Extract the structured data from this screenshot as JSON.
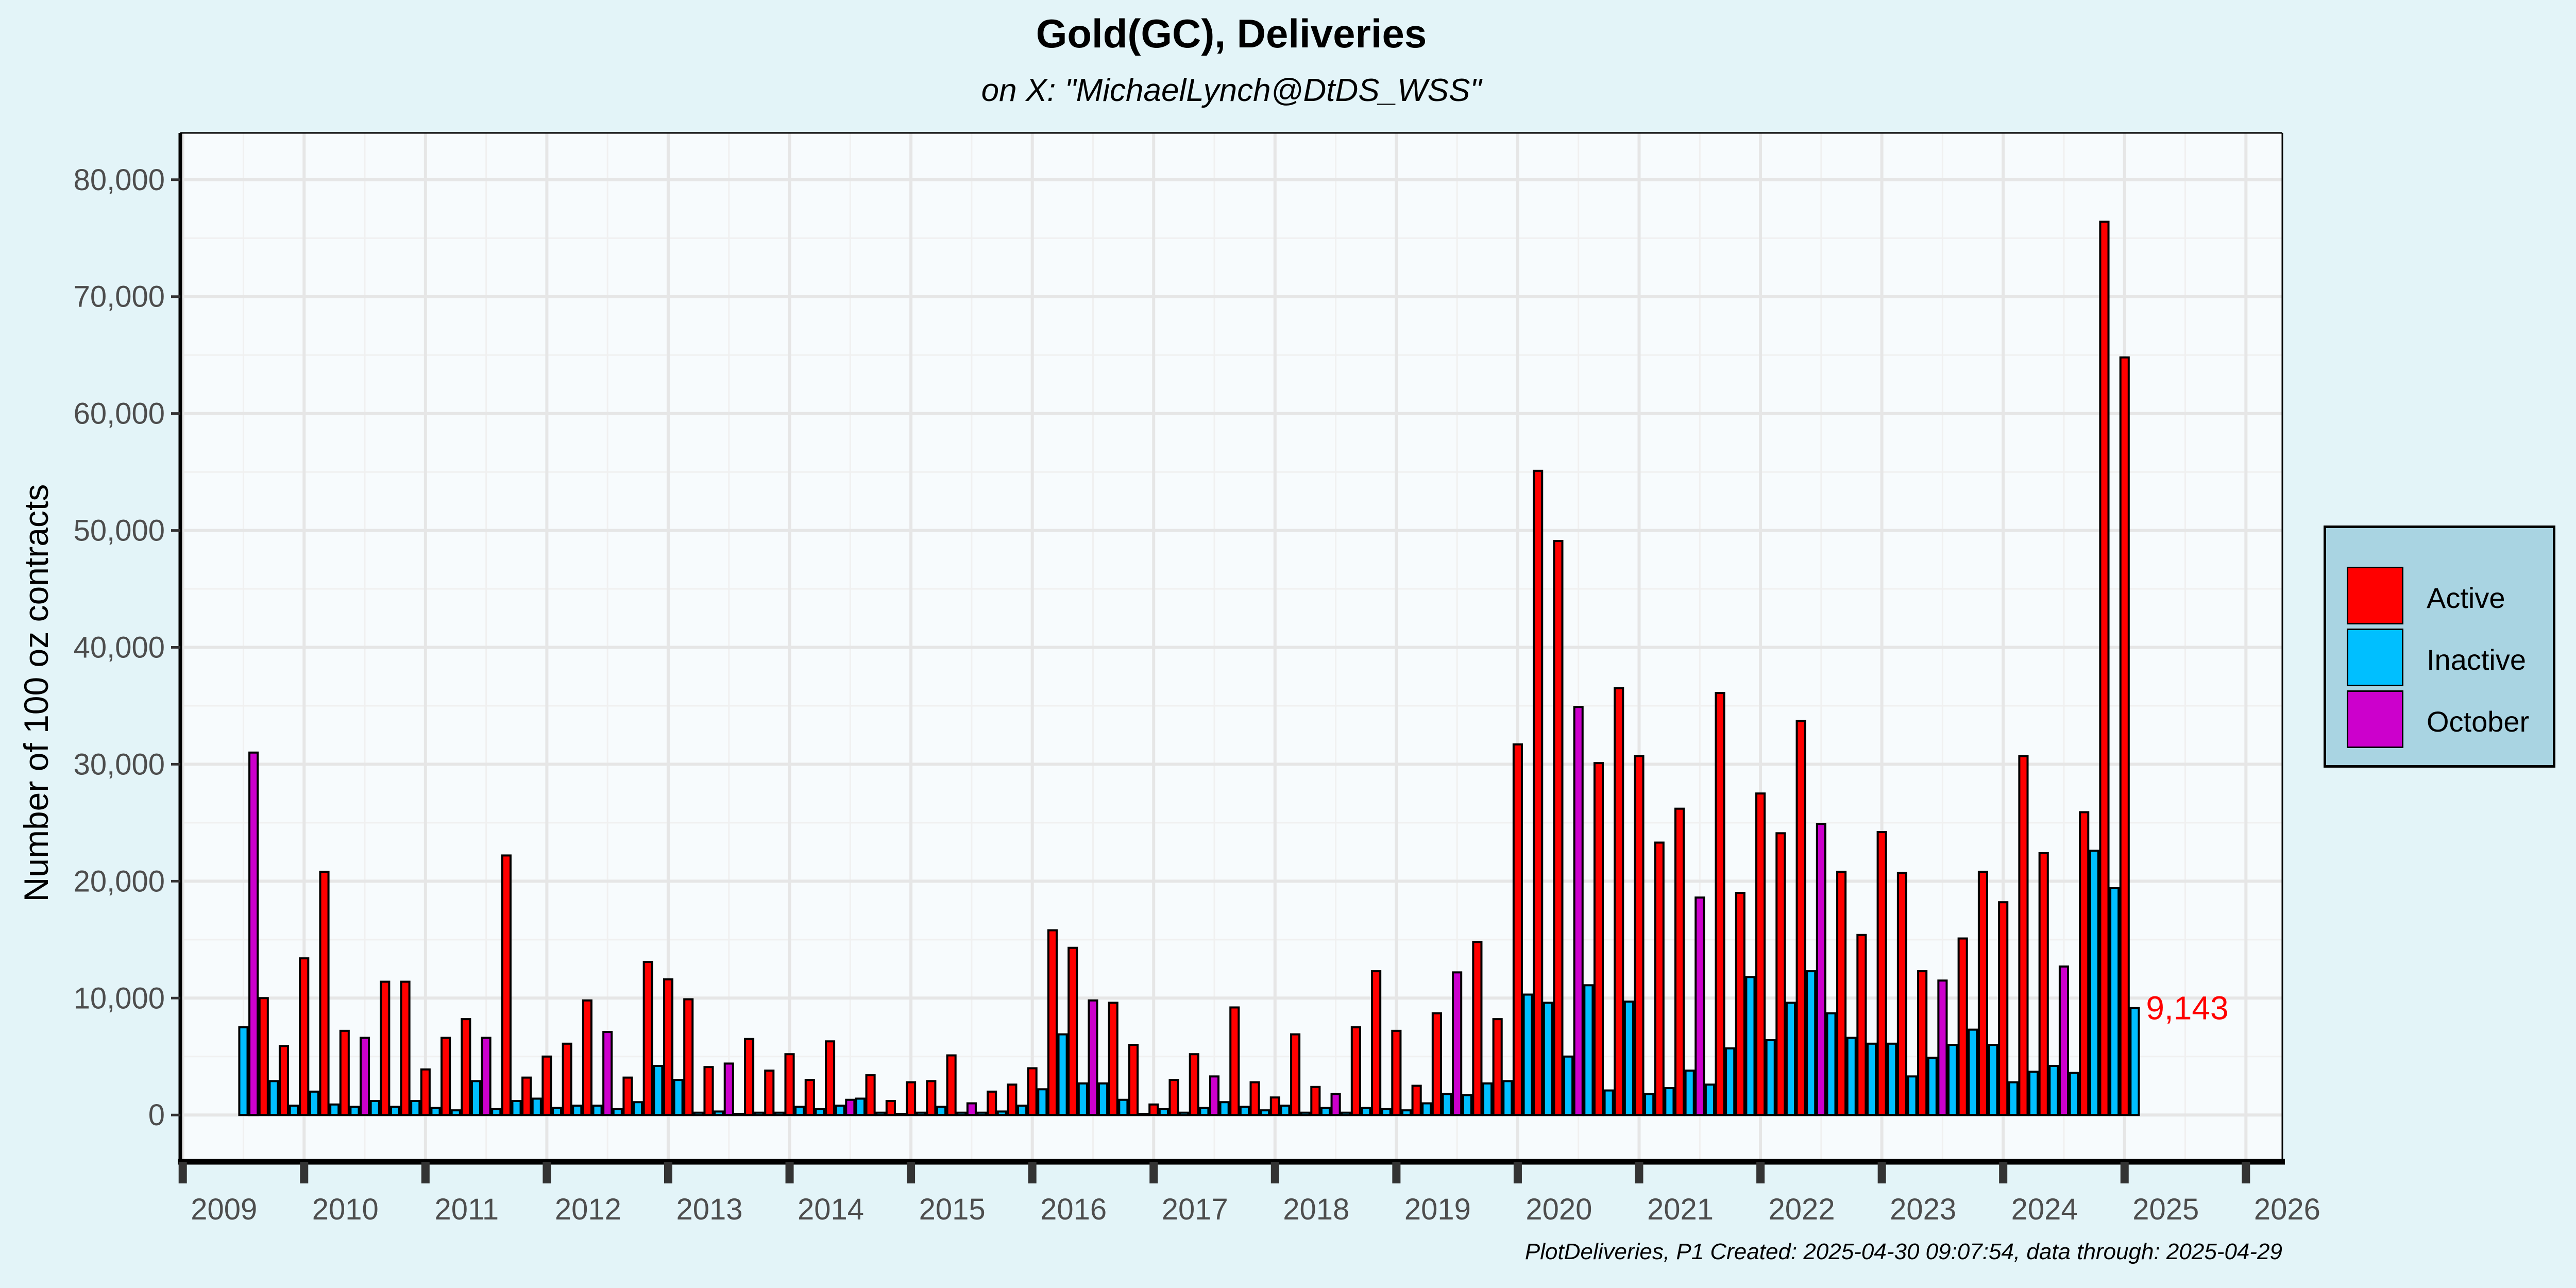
{
  "title": "Gold(GC), Deliveries",
  "subtitle": "on X:   \"MichaelLynch@DtDS_WSS\"",
  "caption": "PlotDeliveries, P1 Created: 2025-04-30 09:07:54, data through: 2025-04-29",
  "colors": {
    "background": "#e3f4f8",
    "panel": "#f7fbfd",
    "grid": "#e6e6e6",
    "Active": "#ff0000",
    "Inactive": "#00bfff",
    "October": "#cc00cc",
    "annotation": "#ff0000"
  },
  "chart_data": {
    "type": "bar",
    "title": "Gold(GC), Deliveries",
    "subtitle": "on X:   \"MichaelLynch@DtDS_WSS\"",
    "xlabel": "",
    "ylabel": "Number of 100 oz contracts",
    "xlim": [
      2008.98,
      2026.3
    ],
    "ylim": [
      -4000,
      84000
    ],
    "x_ticks": [
      "2009",
      "2010",
      "2011",
      "2012",
      "2013",
      "2014",
      "2015",
      "2016",
      "2017",
      "2018",
      "2019",
      "2020",
      "2021",
      "2022",
      "2023",
      "2024",
      "2025",
      "2026"
    ],
    "y_ticks": [
      "0",
      "10,000",
      "20,000",
      "30,000",
      "40,000",
      "50,000",
      "60,000",
      "70,000",
      "80,000"
    ],
    "grid": true,
    "legend_position": "right",
    "series": [
      {
        "name": "Active",
        "color": "#ff0000"
      },
      {
        "name": "Inactive",
        "color": "#00bfff"
      },
      {
        "name": "October",
        "color": "#cc00cc"
      }
    ],
    "bars": [
      {
        "x": "2009-07",
        "series": "Inactive",
        "value": 7500
      },
      {
        "x": "2009-08",
        "series": "Inactive",
        "value": 1000
      },
      {
        "x": "2009-08",
        "series": "October",
        "value": 31000
      },
      {
        "x": "2009-09",
        "series": "Active",
        "value": 10000
      },
      {
        "x": "2009-10",
        "series": "Inactive",
        "value": 2900
      },
      {
        "x": "2009-11",
        "series": "Active",
        "value": 5900
      },
      {
        "x": "2009-12",
        "series": "Inactive",
        "value": 800
      },
      {
        "x": "2010-01",
        "series": "Active",
        "value": 13400
      },
      {
        "x": "2010-02",
        "series": "Inactive",
        "value": 2000
      },
      {
        "x": "2010-03",
        "series": "Active",
        "value": 20800
      },
      {
        "x": "2010-04",
        "series": "Inactive",
        "value": 900
      },
      {
        "x": "2010-05",
        "series": "Active",
        "value": 7200
      },
      {
        "x": "2010-06",
        "series": "Inactive",
        "value": 700
      },
      {
        "x": "2010-07",
        "series": "October",
        "value": 6600
      },
      {
        "x": "2010-08",
        "series": "Inactive",
        "value": 1200
      },
      {
        "x": "2010-09",
        "series": "Active",
        "value": 11400
      },
      {
        "x": "2010-10",
        "series": "Inactive",
        "value": 700
      },
      {
        "x": "2010-11",
        "series": "Active",
        "value": 11400
      },
      {
        "x": "2010-12",
        "series": "Inactive",
        "value": 1200
      },
      {
        "x": "2011-01",
        "series": "Active",
        "value": 3900
      },
      {
        "x": "2011-02",
        "series": "Inactive",
        "value": 600
      },
      {
        "x": "2011-03",
        "series": "Active",
        "value": 6600
      },
      {
        "x": "2011-04",
        "series": "Inactive",
        "value": 400
      },
      {
        "x": "2011-05",
        "series": "Active",
        "value": 8200
      },
      {
        "x": "2011-06",
        "series": "Inactive",
        "value": 2900
      },
      {
        "x": "2011-07",
        "series": "October",
        "value": 6600
      },
      {
        "x": "2011-08",
        "series": "Inactive",
        "value": 500
      },
      {
        "x": "2011-09",
        "series": "Active",
        "value": 22200
      },
      {
        "x": "2011-10",
        "series": "Inactive",
        "value": 1200
      },
      {
        "x": "2011-11",
        "series": "Active",
        "value": 3200
      },
      {
        "x": "2011-12",
        "series": "Inactive",
        "value": 1400
      },
      {
        "x": "2012-01",
        "series": "Active",
        "value": 5000
      },
      {
        "x": "2012-02",
        "series": "Inactive",
        "value": 600
      },
      {
        "x": "2012-03",
        "series": "Active",
        "value": 6100
      },
      {
        "x": "2012-04",
        "series": "Inactive",
        "value": 800
      },
      {
        "x": "2012-05",
        "series": "Active",
        "value": 9800
      },
      {
        "x": "2012-06",
        "series": "Inactive",
        "value": 800
      },
      {
        "x": "2012-07",
        "series": "October",
        "value": 7100
      },
      {
        "x": "2012-08",
        "series": "Inactive",
        "value": 500
      },
      {
        "x": "2012-09",
        "series": "Active",
        "value": 3200
      },
      {
        "x": "2012-10",
        "series": "Inactive",
        "value": 1100
      },
      {
        "x": "2012-11",
        "series": "Active",
        "value": 13100
      },
      {
        "x": "2012-12",
        "series": "Inactive",
        "value": 4200
      },
      {
        "x": "2013-01",
        "series": "Active",
        "value": 11600
      },
      {
        "x": "2013-02",
        "series": "Inactive",
        "value": 3000
      },
      {
        "x": "2013-03",
        "series": "Active",
        "value": 9900
      },
      {
        "x": "2013-04",
        "series": "Inactive",
        "value": 200
      },
      {
        "x": "2013-05",
        "series": "Active",
        "value": 4100
      },
      {
        "x": "2013-06",
        "series": "Inactive",
        "value": 300
      },
      {
        "x": "2013-07",
        "series": "October",
        "value": 4400
      },
      {
        "x": "2013-08",
        "series": "Inactive",
        "value": 100
      },
      {
        "x": "2013-09",
        "series": "Active",
        "value": 6500
      },
      {
        "x": "2013-10",
        "series": "Inactive",
        "value": 200
      },
      {
        "x": "2013-11",
        "series": "Active",
        "value": 3800
      },
      {
        "x": "2013-12",
        "series": "Inactive",
        "value": 200
      },
      {
        "x": "2014-01",
        "series": "Active",
        "value": 5200
      },
      {
        "x": "2014-02",
        "series": "Inactive",
        "value": 700
      },
      {
        "x": "2014-03",
        "series": "Active",
        "value": 3000
      },
      {
        "x": "2014-04",
        "series": "Inactive",
        "value": 500
      },
      {
        "x": "2014-05",
        "series": "Active",
        "value": 6300
      },
      {
        "x": "2014-06",
        "series": "Inactive",
        "value": 800
      },
      {
        "x": "2014-07",
        "series": "October",
        "value": 1300
      },
      {
        "x": "2014-08",
        "series": "Inactive",
        "value": 1400
      },
      {
        "x": "2014-09",
        "series": "Active",
        "value": 3400
      },
      {
        "x": "2014-10",
        "series": "Inactive",
        "value": 200
      },
      {
        "x": "2014-11",
        "series": "Active",
        "value": 1200
      },
      {
        "x": "2014-12",
        "series": "Inactive",
        "value": 100
      },
      {
        "x": "2015-01",
        "series": "Active",
        "value": 2800
      },
      {
        "x": "2015-02",
        "series": "Inactive",
        "value": 200
      },
      {
        "x": "2015-03",
        "series": "Active",
        "value": 2900
      },
      {
        "x": "2015-04",
        "series": "Inactive",
        "value": 700
      },
      {
        "x": "2015-05",
        "series": "Active",
        "value": 5100
      },
      {
        "x": "2015-06",
        "series": "Inactive",
        "value": 200
      },
      {
        "x": "2015-07",
        "series": "October",
        "value": 1000
      },
      {
        "x": "2015-08",
        "series": "Inactive",
        "value": 200
      },
      {
        "x": "2015-09",
        "series": "Active",
        "value": 2000
      },
      {
        "x": "2015-10",
        "series": "Inactive",
        "value": 300
      },
      {
        "x": "2015-11",
        "series": "Active",
        "value": 2600
      },
      {
        "x": "2015-12",
        "series": "Inactive",
        "value": 800
      },
      {
        "x": "2016-01",
        "series": "Active",
        "value": 4000
      },
      {
        "x": "2016-02",
        "series": "Inactive",
        "value": 2200
      },
      {
        "x": "2016-03",
        "series": "Active",
        "value": 15800
      },
      {
        "x": "2016-04",
        "series": "Inactive",
        "value": 6900
      },
      {
        "x": "2016-05",
        "series": "Active",
        "value": 14300
      },
      {
        "x": "2016-06",
        "series": "Inactive",
        "value": 2700
      },
      {
        "x": "2016-07",
        "series": "October",
        "value": 9800
      },
      {
        "x": "2016-08",
        "series": "Inactive",
        "value": 2700
      },
      {
        "x": "2016-09",
        "series": "Active",
        "value": 9600
      },
      {
        "x": "2016-10",
        "series": "Inactive",
        "value": 1300
      },
      {
        "x": "2016-11",
        "series": "Active",
        "value": 6000
      },
      {
        "x": "2016-12",
        "series": "Inactive",
        "value": 100
      },
      {
        "x": "2017-01",
        "series": "Active",
        "value": 900
      },
      {
        "x": "2017-02",
        "series": "Inactive",
        "value": 500
      },
      {
        "x": "2017-03",
        "series": "Active",
        "value": 3000
      },
      {
        "x": "2017-04",
        "series": "Inactive",
        "value": 200
      },
      {
        "x": "2017-05",
        "series": "Active",
        "value": 5200
      },
      {
        "x": "2017-06",
        "series": "Inactive",
        "value": 600
      },
      {
        "x": "2017-07",
        "series": "October",
        "value": 3300
      },
      {
        "x": "2017-08",
        "series": "Inactive",
        "value": 1100
      },
      {
        "x": "2017-09",
        "series": "Active",
        "value": 9200
      },
      {
        "x": "2017-10",
        "series": "Inactive",
        "value": 700
      },
      {
        "x": "2017-11",
        "series": "Active",
        "value": 2800
      },
      {
        "x": "2017-12",
        "series": "Inactive",
        "value": 400
      },
      {
        "x": "2018-01",
        "series": "Active",
        "value": 1500
      },
      {
        "x": "2018-02",
        "series": "Inactive",
        "value": 800
      },
      {
        "x": "2018-03",
        "series": "Active",
        "value": 6900
      },
      {
        "x": "2018-04",
        "series": "Inactive",
        "value": 200
      },
      {
        "x": "2018-05",
        "series": "Active",
        "value": 2400
      },
      {
        "x": "2018-06",
        "series": "Inactive",
        "value": 600
      },
      {
        "x": "2018-07",
        "series": "October",
        "value": 1800
      },
      {
        "x": "2018-08",
        "series": "Inactive",
        "value": 200
      },
      {
        "x": "2018-09",
        "series": "Active",
        "value": 7500
      },
      {
        "x": "2018-10",
        "series": "Inactive",
        "value": 600
      },
      {
        "x": "2018-11",
        "series": "Active",
        "value": 12300
      },
      {
        "x": "2018-12",
        "series": "Inactive",
        "value": 500
      },
      {
        "x": "2019-01",
        "series": "Active",
        "value": 7200
      },
      {
        "x": "2019-02",
        "series": "Inactive",
        "value": 400
      },
      {
        "x": "2019-03",
        "series": "Active",
        "value": 2500
      },
      {
        "x": "2019-04",
        "series": "Inactive",
        "value": 1000
      },
      {
        "x": "2019-05",
        "series": "Active",
        "value": 8700
      },
      {
        "x": "2019-06",
        "series": "Inactive",
        "value": 1800
      },
      {
        "x": "2019-07",
        "series": "October",
        "value": 12200
      },
      {
        "x": "2019-08",
        "series": "Inactive",
        "value": 1700
      },
      {
        "x": "2019-09",
        "series": "Active",
        "value": 14800
      },
      {
        "x": "2019-10",
        "series": "Inactive",
        "value": 2700
      },
      {
        "x": "2019-11",
        "series": "Active",
        "value": 8200
      },
      {
        "x": "2019-12",
        "series": "Inactive",
        "value": 2900
      },
      {
        "x": "2020-01",
        "series": "Active",
        "value": 31700
      },
      {
        "x": "2020-02",
        "series": "Inactive",
        "value": 10300
      },
      {
        "x": "2020-03",
        "series": "Active",
        "value": 55100
      },
      {
        "x": "2020-04",
        "series": "Inactive",
        "value": 9600
      },
      {
        "x": "2020-05",
        "series": "Active",
        "value": 49100
      },
      {
        "x": "2020-06",
        "series": "Inactive",
        "value": 5000
      },
      {
        "x": "2020-07",
        "series": "October",
        "value": 34900
      },
      {
        "x": "2020-08",
        "series": "Inactive",
        "value": 11100
      },
      {
        "x": "2020-09",
        "series": "Active",
        "value": 30100
      },
      {
        "x": "2020-10",
        "series": "Inactive",
        "value": 2100
      },
      {
        "x": "2020-11",
        "series": "Active",
        "value": 36500
      },
      {
        "x": "2020-12",
        "series": "Inactive",
        "value": 9700
      },
      {
        "x": "2021-01",
        "series": "Active",
        "value": 30700
      },
      {
        "x": "2021-02",
        "series": "Inactive",
        "value": 1800
      },
      {
        "x": "2021-03",
        "series": "Active",
        "value": 23300
      },
      {
        "x": "2021-04",
        "series": "Inactive",
        "value": 2300
      },
      {
        "x": "2021-05",
        "series": "Active",
        "value": 26200
      },
      {
        "x": "2021-06",
        "series": "Inactive",
        "value": 3800
      },
      {
        "x": "2021-07",
        "series": "October",
        "value": 18600
      },
      {
        "x": "2021-08",
        "series": "Inactive",
        "value": 2600
      },
      {
        "x": "2021-09",
        "series": "Active",
        "value": 36100
      },
      {
        "x": "2021-10",
        "series": "Inactive",
        "value": 5700
      },
      {
        "x": "2021-11",
        "series": "Active",
        "value": 19000
      },
      {
        "x": "2021-12",
        "series": "Inactive",
        "value": 11800
      },
      {
        "x": "2022-01",
        "series": "Active",
        "value": 27500
      },
      {
        "x": "2022-02",
        "series": "Inactive",
        "value": 6400
      },
      {
        "x": "2022-03",
        "series": "Active",
        "value": 24100
      },
      {
        "x": "2022-04",
        "series": "Inactive",
        "value": 9600
      },
      {
        "x": "2022-05",
        "series": "Active",
        "value": 33700
      },
      {
        "x": "2022-06",
        "series": "Inactive",
        "value": 12300
      },
      {
        "x": "2022-07",
        "series": "October",
        "value": 24900
      },
      {
        "x": "2022-08",
        "series": "Inactive",
        "value": 8700
      },
      {
        "x": "2022-09",
        "series": "Active",
        "value": 20800
      },
      {
        "x": "2022-10",
        "series": "Inactive",
        "value": 6600
      },
      {
        "x": "2022-11",
        "series": "Active",
        "value": 15400
      },
      {
        "x": "2022-12",
        "series": "Inactive",
        "value": 6100
      },
      {
        "x": "2023-01",
        "series": "Active",
        "value": 24200
      },
      {
        "x": "2023-02",
        "series": "Inactive",
        "value": 6100
      },
      {
        "x": "2023-03",
        "series": "Active",
        "value": 20700
      },
      {
        "x": "2023-04",
        "series": "Inactive",
        "value": 3300
      },
      {
        "x": "2023-05",
        "series": "Active",
        "value": 12300
      },
      {
        "x": "2023-06",
        "series": "Inactive",
        "value": 4900
      },
      {
        "x": "2023-07",
        "series": "October",
        "value": 11500
      },
      {
        "x": "2023-08",
        "series": "Inactive",
        "value": 6000
      },
      {
        "x": "2023-09",
        "series": "Active",
        "value": 15100
      },
      {
        "x": "2023-10",
        "series": "Inactive",
        "value": 7300
      },
      {
        "x": "2023-11",
        "series": "Active",
        "value": 20800
      },
      {
        "x": "2023-12",
        "series": "Inactive",
        "value": 6000
      },
      {
        "x": "2024-01",
        "series": "Active",
        "value": 18200
      },
      {
        "x": "2024-02",
        "series": "Inactive",
        "value": 2800
      },
      {
        "x": "2024-03",
        "series": "Active",
        "value": 30700
      },
      {
        "x": "2024-04",
        "series": "Inactive",
        "value": 3700
      },
      {
        "x": "2024-05",
        "series": "Active",
        "value": 22400
      },
      {
        "x": "2024-06",
        "series": "Inactive",
        "value": 4200
      },
      {
        "x": "2024-07",
        "series": "October",
        "value": 12700
      },
      {
        "x": "2024-08",
        "series": "Inactive",
        "value": 3600
      },
      {
        "x": "2024-09",
        "series": "Active",
        "value": 25900
      },
      {
        "x": "2024-10",
        "series": "Inactive",
        "value": 22600
      },
      {
        "x": "2024-11",
        "series": "Active",
        "value": 76400
      },
      {
        "x": "2024-12",
        "series": "Inactive",
        "value": 19400
      },
      {
        "x": "2025-01",
        "series": "Active",
        "value": 64800
      },
      {
        "x": "2025-02",
        "series": "Inactive",
        "value": 9143
      }
    ],
    "annotations": [
      {
        "text": "9,143",
        "x": "2025-02",
        "y": 9143,
        "color": "#ff0000"
      }
    ]
  }
}
